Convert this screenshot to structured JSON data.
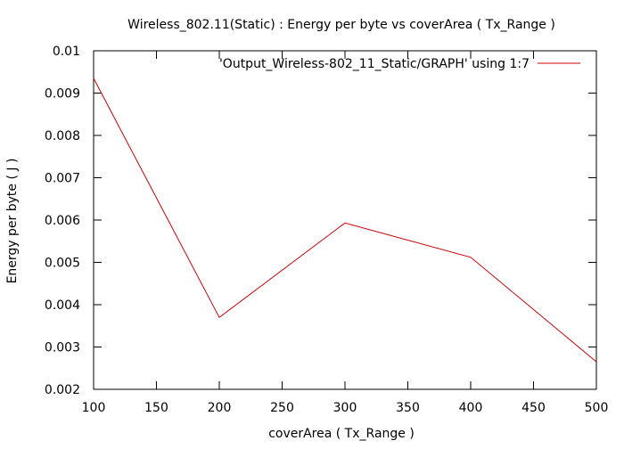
{
  "chart_data": {
    "type": "line",
    "title": "Wireless_802.11(Static) : Energy per byte vs coverArea ( Tx_Range )",
    "xlabel": "coverArea ( Tx_Range )",
    "ylabel": "Energy per byte ( J )",
    "xlim": [
      100,
      500
    ],
    "ylim": [
      0.002,
      0.01
    ],
    "xticks": [
      "100",
      "150",
      "200",
      "250",
      "300",
      "350",
      "400",
      "450",
      "500"
    ],
    "yticks": [
      "0.002",
      "0.003",
      "0.004",
      "0.005",
      "0.006",
      "0.007",
      "0.008",
      "0.009",
      "0.01"
    ],
    "grid": false,
    "legend_position": "top-right",
    "series": [
      {
        "name": "'Output_Wireless-802_11_Static/GRAPH' using 1:7",
        "color": "#cc0000",
        "x": [
          100,
          200,
          300,
          400,
          500
        ],
        "y": [
          0.00935,
          0.0037,
          0.00593,
          0.00512,
          0.00265
        ]
      }
    ]
  }
}
